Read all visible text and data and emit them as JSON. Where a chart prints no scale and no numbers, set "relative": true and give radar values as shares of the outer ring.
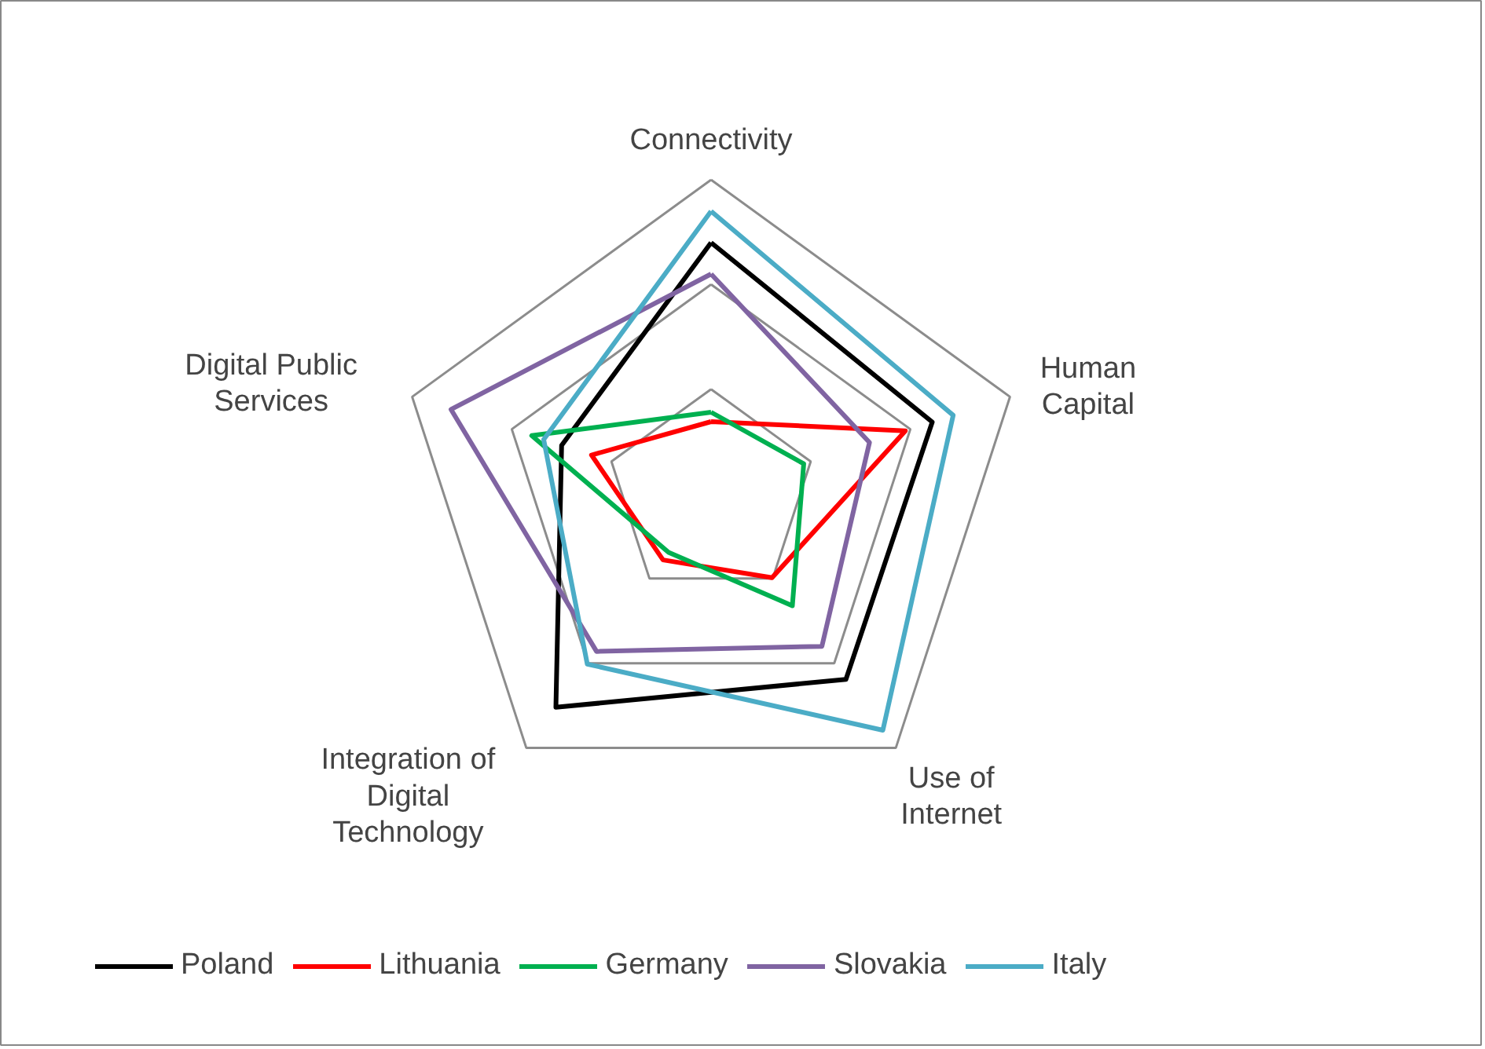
{
  "chart_data": {
    "type": "radar",
    "relative": true,
    "grid": true,
    "legend": "bottom",
    "categories": [
      "Connectivity",
      "Human Capital",
      "Use of Internet",
      "Integration of Digital Technology",
      "Digital Public Services"
    ],
    "series": [
      {
        "name": "Poland",
        "color": "#000000",
        "values": [
          0.8,
          0.74,
          0.73,
          0.84,
          0.5
        ]
      },
      {
        "name": "Lithuania",
        "color": "#ff0000",
        "values": [
          0.23,
          0.65,
          0.33,
          0.26,
          0.4
        ]
      },
      {
        "name": "Germany",
        "color": "#00b050",
        "values": [
          0.26,
          0.31,
          0.44,
          0.23,
          0.6
        ]
      },
      {
        "name": "Slovakia",
        "color": "#8064a2",
        "values": [
          0.7,
          0.53,
          0.6,
          0.62,
          0.87
        ]
      },
      {
        "name": "Italy",
        "color": "#4bacc6",
        "values": [
          0.9,
          0.81,
          0.93,
          0.67,
          0.56
        ]
      }
    ]
  }
}
